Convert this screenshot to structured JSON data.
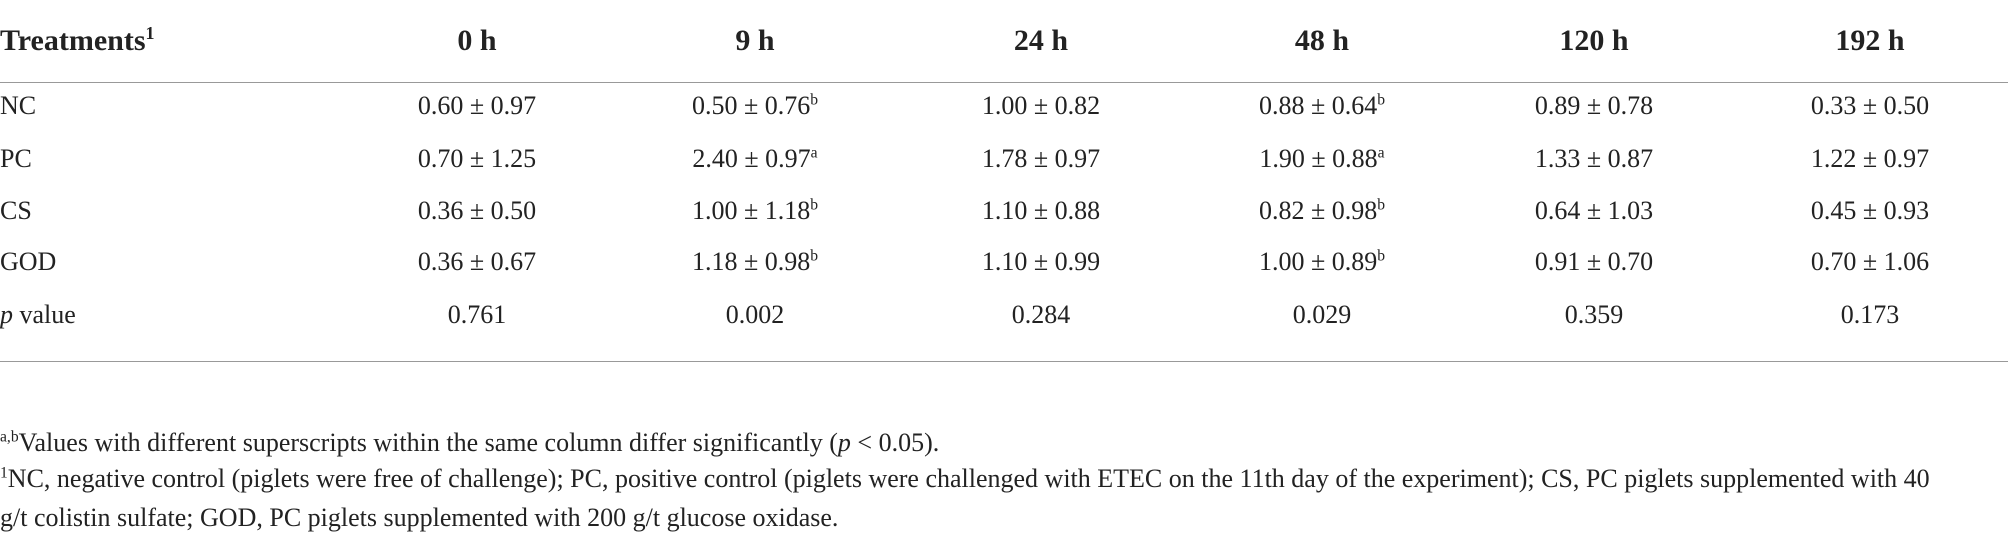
{
  "table": {
    "header": [
      {
        "text": "Treatments",
        "sup": "1"
      },
      {
        "text": "0 h"
      },
      {
        "text": "9 h"
      },
      {
        "text": "24 h"
      },
      {
        "text": "48 h"
      },
      {
        "text": "120 h"
      },
      {
        "text": "192 h"
      }
    ],
    "rows": [
      [
        {
          "text": "NC"
        },
        {
          "text": "0.60 ± 0.97"
        },
        {
          "text": "0.50 ± 0.76",
          "sup": "b"
        },
        {
          "text": "1.00 ± 0.82"
        },
        {
          "text": "0.88 ± 0.64",
          "sup": "b"
        },
        {
          "text": "0.89 ± 0.78"
        },
        {
          "text": "0.33 ± 0.50"
        }
      ],
      [
        {
          "text": "PC"
        },
        {
          "text": "0.70 ± 1.25"
        },
        {
          "text": "2.40 ± 0.97",
          "sup": "a"
        },
        {
          "text": "1.78 ± 0.97"
        },
        {
          "text": "1.90 ± 0.88",
          "sup": "a"
        },
        {
          "text": "1.33 ± 0.87"
        },
        {
          "text": "1.22 ± 0.97"
        }
      ],
      [
        {
          "text": "CS"
        },
        {
          "text": "0.36 ± 0.50"
        },
        {
          "text": "1.00 ± 1.18",
          "sup": "b"
        },
        {
          "text": "1.10 ± 0.88"
        },
        {
          "text": "0.82 ± 0.98",
          "sup": "b"
        },
        {
          "text": "0.64 ± 1.03"
        },
        {
          "text": "0.45 ± 0.93"
        }
      ],
      [
        {
          "text": "GOD"
        },
        {
          "text": "0.36 ± 0.67"
        },
        {
          "text": "1.18 ± 0.98",
          "sup": "b"
        },
        {
          "text": "1.10 ± 0.99"
        },
        {
          "text": "1.00 ± 0.89",
          "sup": "b"
        },
        {
          "text": "0.91 ± 0.70"
        },
        {
          "text": "0.70 ± 1.06"
        }
      ],
      [
        {
          "italic": "p",
          "text": "value"
        },
        {
          "text": "0.761"
        },
        {
          "text": "0.002"
        },
        {
          "text": "0.284"
        },
        {
          "text": "0.029"
        },
        {
          "text": "0.359"
        },
        {
          "text": "0.173"
        }
      ]
    ]
  },
  "footnotes": [
    [
      {
        "sup": "a,b"
      },
      {
        "text": "Values with different superscripts within the same column differ significantly ("
      },
      {
        "italic": "p"
      },
      {
        "text": " < 0.05)."
      }
    ],
    [
      {
        "sup": "1"
      },
      {
        "text": "NC, negative control (piglets were free of challenge); PC, positive control (piglets were challenged with ETEC on the 11th day of the experiment); CS, PC piglets supplemented with 40 g/t colistin sulfate; GOD, PC piglets supplemented with 200 g/t glucose oxidase."
      }
    ]
  ]
}
